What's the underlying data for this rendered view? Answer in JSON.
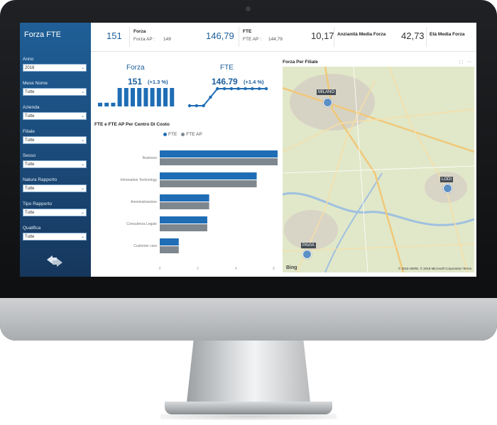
{
  "sidebar": {
    "title": "Forza FTE",
    "filters": [
      {
        "label": "Anno",
        "value": "2018"
      },
      {
        "label": "Mese Nome",
        "value": "Tutte"
      },
      {
        "label": "Azienda",
        "value": "Tutte"
      },
      {
        "label": "Filiale",
        "value": "Tutte"
      },
      {
        "label": "Sesso",
        "value": "Tutte"
      },
      {
        "label": "Natura Rapporto",
        "value": "Tutte"
      },
      {
        "label": "Tipo Rapporto",
        "value": "Tutte"
      },
      {
        "label": "Qualifica",
        "value": "Tutte"
      }
    ],
    "swap_icon": "swap-arrows-icon"
  },
  "kpis": {
    "forza_value": "151",
    "forza_title": "Forza",
    "forza_ap_label": "Forza AP :",
    "forza_ap_value": "149",
    "fte_value": "146,79",
    "fte_title": "FTE",
    "fte_ap_label": "FTE AP :",
    "fte_ap_value": "144,79",
    "anzianita_value": "10,17",
    "anzianita_title": "Anzianità Media Forza",
    "eta_value": "42,73",
    "eta_title": "Età Media Forza"
  },
  "mini_forza": {
    "title": "Forza",
    "value": "151",
    "delta": "(+1.3 %)",
    "bars": [
      2,
      2,
      2,
      10,
      10,
      10,
      10,
      10,
      10,
      10,
      10,
      10
    ]
  },
  "mini_fte": {
    "title": "FTE",
    "value": "146.79",
    "delta": "(+1.4 %)",
    "points": [
      1,
      1,
      1,
      2,
      3,
      3,
      3,
      3,
      3,
      3,
      3,
      3
    ]
  },
  "bar_panel": {
    "title": "FTE e FTE AP Per Centro Di Costo"
  },
  "chart_data": {
    "type": "bar",
    "orientation": "horizontal",
    "categories": [
      "Business",
      "Information Technology",
      "Amministrazione",
      "Consulenza Legale",
      "Customer care"
    ],
    "series": [
      {
        "name": "FTE",
        "color": "#1f6db5",
        "values": [
          6.2,
          5.1,
          2.6,
          2.5,
          1.0
        ]
      },
      {
        "name": "FTE AP",
        "color": "#7f878e",
        "values": [
          6.2,
          5.1,
          2.6,
          2.5,
          1.0
        ]
      }
    ],
    "xticks": [
      "0",
      "2",
      "4",
      "6"
    ],
    "xlim": [
      0,
      6.2
    ]
  },
  "map_panel": {
    "title": "Forza Per Filiale",
    "locations": [
      {
        "name": "MILANO"
      },
      {
        "name": "LODI"
      },
      {
        "name": "PAVIA"
      }
    ],
    "attribution": "© 2018 HERE, © 2018 Microsoft Corporation  Terms",
    "logo": "Bing"
  },
  "colors": {
    "accent": "#1a5d9a",
    "sidebar": "#1f5f97",
    "bar_fte": "#1f6db5",
    "bar_fte_ap": "#7f878e"
  }
}
